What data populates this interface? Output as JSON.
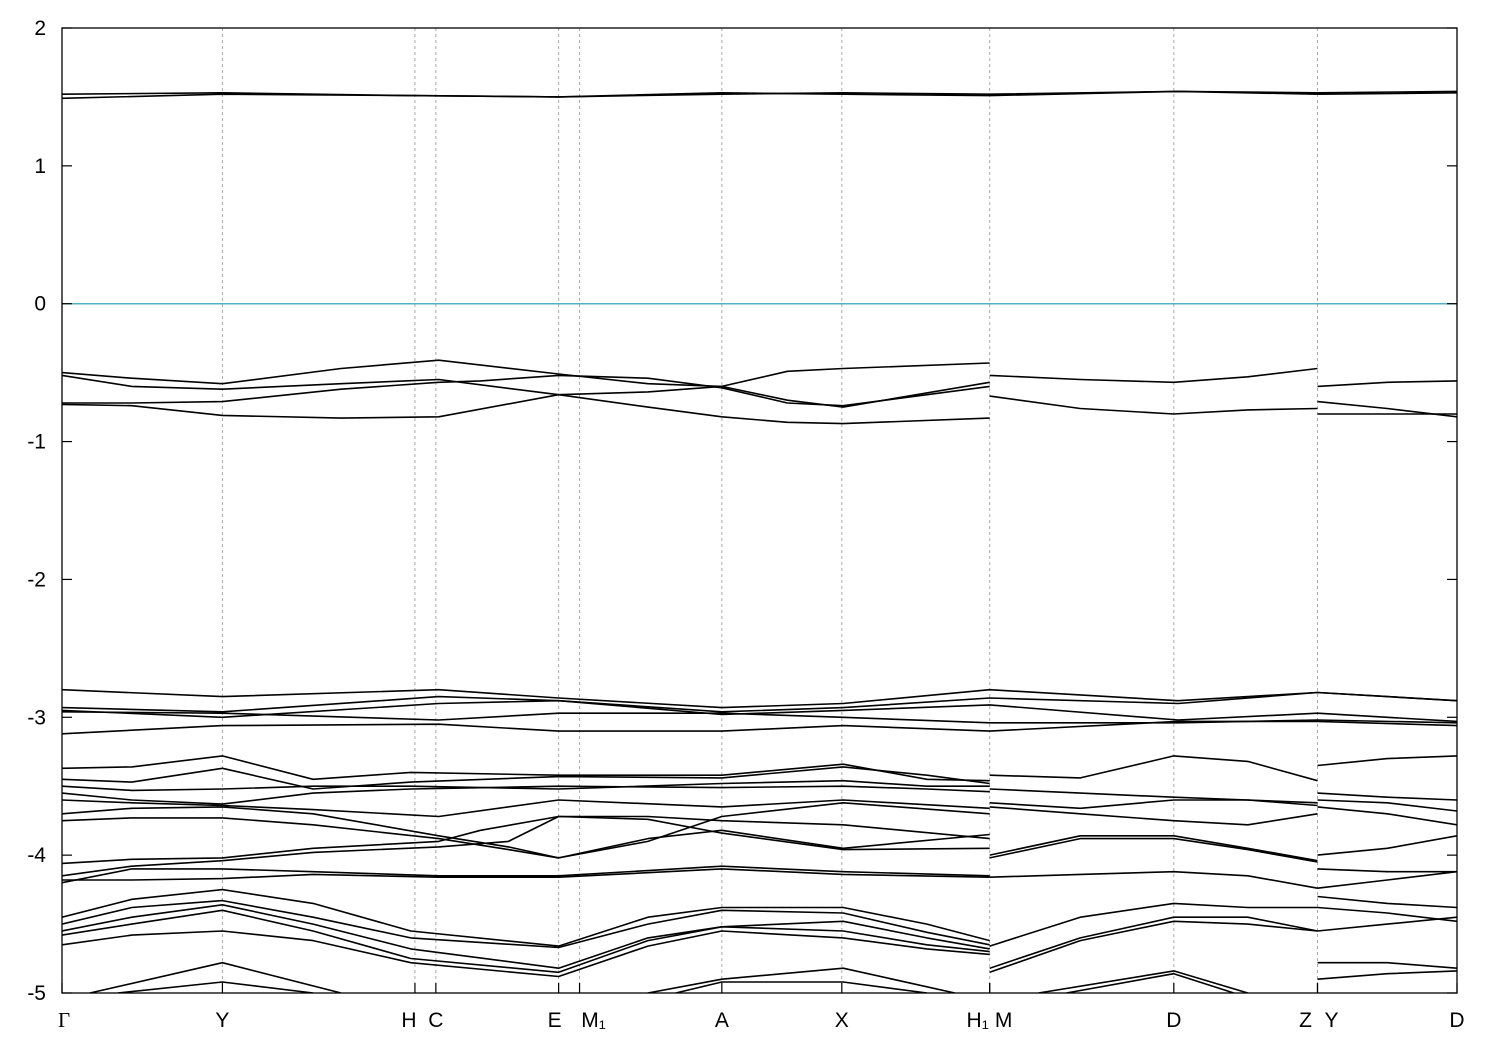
{
  "chart_data": {
    "type": "line",
    "title": "",
    "xlabel": "",
    "ylabel": "",
    "ylim": [
      -5,
      2
    ],
    "xlim": [
      0,
      1
    ],
    "yticks": [
      "2",
      "1",
      "0",
      "-1",
      "-2",
      "-3",
      "-4",
      "-5"
    ],
    "grid": "vertical dashed lines at k-points",
    "fermi_level": {
      "y": 0,
      "color": "#4fb3c8"
    },
    "line_color": "#000000",
    "kpoints": [
      {
        "label": "Γ",
        "x": 0.0
      },
      {
        "label": "Y",
        "x": 0.115
      },
      {
        "label": "H",
        "x": 0.253
      },
      {
        "label": "C",
        "x": 0.268
      },
      {
        "label": "E",
        "x": 0.356
      },
      {
        "label": "M₁",
        "x": 0.371
      },
      {
        "label": "A",
        "x": 0.473
      },
      {
        "label": "X",
        "x": 0.559
      },
      {
        "label": "H₁",
        "x": 0.665
      },
      {
        "label": "M",
        "x": 0.665
      },
      {
        "label": "D",
        "x": 0.797
      },
      {
        "label": "Z",
        "x": 0.9
      },
      {
        "label": "Y",
        "x": 0.9
      },
      {
        "label": "D",
        "x": 1.0
      }
    ],
    "series": [
      {
        "x": [
          0,
          0.115,
          0.25,
          0.356,
          0.473,
          0.56,
          0.665,
          0.8,
          0.9,
          1.0
        ],
        "y": [
          1.52,
          1.53,
          1.51,
          1.5,
          1.52,
          1.53,
          1.52,
          1.54,
          1.53,
          1.54
        ]
      },
      {
        "x": [
          0,
          0.115,
          0.25,
          0.356,
          0.473,
          0.56,
          0.665,
          0.8,
          0.9,
          1.0
        ],
        "y": [
          1.49,
          1.52,
          1.51,
          1.5,
          1.53,
          1.52,
          1.51,
          1.54,
          1.52,
          1.53
        ]
      },
      {
        "x": [
          0,
          0.05,
          0.115,
          0.2,
          0.27,
          0.356,
          0.42,
          0.473,
          0.52,
          0.56,
          0.665
        ],
        "y": [
          -0.5,
          -0.54,
          -0.58,
          -0.47,
          -0.41,
          -0.51,
          -0.58,
          -0.6,
          -0.49,
          -0.47,
          -0.43
        ]
      },
      {
        "x": [
          0,
          0.05,
          0.115,
          0.2,
          0.27,
          0.356,
          0.42,
          0.473,
          0.52,
          0.56,
          0.665
        ],
        "y": [
          -0.52,
          -0.6,
          -0.62,
          -0.58,
          -0.55,
          -0.66,
          -0.64,
          -0.6,
          -0.7,
          -0.75,
          -0.57
        ]
      },
      {
        "x": [
          0,
          0.05,
          0.115,
          0.2,
          0.27,
          0.3,
          0.356,
          0.42,
          0.473,
          0.52,
          0.56,
          0.665
        ],
        "y": [
          -0.72,
          -0.72,
          -0.71,
          -0.62,
          -0.57,
          -0.56,
          -0.52,
          -0.54,
          -0.61,
          -0.72,
          -0.74,
          -0.6
        ]
      },
      {
        "x": [
          0,
          0.05,
          0.115,
          0.2,
          0.27,
          0.356,
          0.42,
          0.473,
          0.52,
          0.56,
          0.665
        ],
        "y": [
          -0.73,
          -0.74,
          -0.81,
          -0.83,
          -0.82,
          -0.66,
          -0.75,
          -0.82,
          -0.86,
          -0.87,
          -0.83
        ]
      },
      {
        "x": [
          0.665,
          0.73,
          0.797,
          0.85,
          0.9
        ],
        "y": [
          -0.52,
          -0.55,
          -0.57,
          -0.53,
          -0.47
        ]
      },
      {
        "x": [
          0.665,
          0.73,
          0.797,
          0.85,
          0.9
        ],
        "y": [
          -0.67,
          -0.76,
          -0.8,
          -0.77,
          -0.76
        ]
      },
      {
        "x": [
          0.9,
          0.95,
          1.0
        ],
        "y": [
          -0.6,
          -0.57,
          -0.56
        ]
      },
      {
        "x": [
          0.9,
          0.95,
          1.0
        ],
        "y": [
          -0.71,
          -0.76,
          -0.82
        ]
      },
      {
        "x": [
          0.9,
          0.95,
          1.0
        ],
        "y": [
          -0.8,
          -0.8,
          -0.8
        ]
      },
      {
        "x": [
          0,
          0.115,
          0.27,
          0.356,
          0.473,
          0.56,
          0.665,
          0.8,
          0.9,
          1.0
        ],
        "y": [
          -2.8,
          -2.85,
          -2.8,
          -2.86,
          -2.93,
          -2.9,
          -2.8,
          -2.88,
          -2.82,
          -2.88
        ]
      },
      {
        "x": [
          0,
          0.115,
          0.27,
          0.356,
          0.473,
          0.56,
          0.665,
          0.8,
          0.9,
          1.0
        ],
        "y": [
          -2.93,
          -2.96,
          -2.85,
          -2.88,
          -2.96,
          -2.93,
          -2.86,
          -2.9,
          -2.82,
          -2.88
        ]
      },
      {
        "x": [
          0,
          0.115,
          0.27,
          0.356,
          0.473,
          0.56,
          0.665,
          0.8,
          0.9,
          1.0
        ],
        "y": [
          -2.95,
          -3.0,
          -2.9,
          -2.88,
          -2.98,
          -2.95,
          -2.91,
          -3.02,
          -2.97,
          -3.03
        ]
      },
      {
        "x": [
          0,
          0.115,
          0.27,
          0.356,
          0.473,
          0.56,
          0.665,
          0.8,
          0.9,
          1.0
        ],
        "y": [
          -2.96,
          -2.97,
          -3.02,
          -2.97,
          -2.97,
          -3.0,
          -3.04,
          -3.04,
          -3.02,
          -3.04
        ]
      },
      {
        "x": [
          0,
          0.115,
          0.27,
          0.356,
          0.473,
          0.56,
          0.665,
          0.8,
          0.9,
          1.0
        ],
        "y": [
          -3.12,
          -3.06,
          -3.05,
          -3.1,
          -3.1,
          -3.06,
          -3.1,
          -3.03,
          -3.03,
          -3.06
        ]
      },
      {
        "x": [
          0,
          0.05,
          0.115,
          0.18,
          0.25,
          0.356,
          0.473,
          0.56,
          0.62,
          0.665
        ],
        "y": [
          -3.37,
          -3.36,
          -3.28,
          -3.45,
          -3.4,
          -3.42,
          -3.42,
          -3.34,
          -3.45,
          -3.46
        ]
      },
      {
        "x": [
          0,
          0.05,
          0.115,
          0.18,
          0.25,
          0.356,
          0.473,
          0.56,
          0.62,
          0.665
        ],
        "y": [
          -3.45,
          -3.47,
          -3.37,
          -3.52,
          -3.47,
          -3.43,
          -3.44,
          -3.36,
          -3.42,
          -3.48
        ]
      },
      {
        "x": [
          0,
          0.05,
          0.115,
          0.18,
          0.25,
          0.356,
          0.473,
          0.56,
          0.62,
          0.665
        ],
        "y": [
          -3.5,
          -3.53,
          -3.52,
          -3.5,
          -3.5,
          -3.52,
          -3.48,
          -3.46,
          -3.5,
          -3.5
        ]
      },
      {
        "x": [
          0,
          0.05,
          0.115,
          0.18,
          0.25,
          0.356,
          0.473,
          0.56,
          0.62,
          0.665
        ],
        "y": [
          -3.55,
          -3.6,
          -3.63,
          -3.55,
          -3.52,
          -3.5,
          -3.51,
          -3.5,
          -3.52,
          -3.54
        ]
      },
      {
        "x": [
          0,
          0.05,
          0.115,
          0.18,
          0.27,
          0.356,
          0.473,
          0.56,
          0.665
        ],
        "y": [
          -3.6,
          -3.62,
          -3.64,
          -3.67,
          -3.72,
          -3.6,
          -3.65,
          -3.6,
          -3.66
        ]
      },
      {
        "x": [
          0,
          0.05,
          0.115,
          0.18,
          0.27,
          0.32,
          0.356,
          0.42,
          0.473,
          0.56,
          0.665
        ],
        "y": [
          -3.7,
          -3.66,
          -3.65,
          -3.7,
          -3.86,
          -3.94,
          -4.02,
          -3.9,
          -3.72,
          -3.62,
          -3.7
        ]
      },
      {
        "x": [
          0,
          0.05,
          0.115,
          0.18,
          0.27,
          0.32,
          0.356,
          0.42,
          0.473,
          0.56,
          0.665
        ],
        "y": [
          -3.75,
          -3.73,
          -3.73,
          -3.78,
          -3.88,
          -3.96,
          -4.02,
          -3.88,
          -3.82,
          -3.95,
          -3.85
        ]
      },
      {
        "x": [
          0,
          0.05,
          0.115,
          0.18,
          0.27,
          0.3,
          0.356,
          0.42,
          0.473,
          0.56,
          0.665
        ],
        "y": [
          -4.06,
          -4.03,
          -4.02,
          -3.95,
          -3.9,
          -3.82,
          -3.72,
          -3.72,
          -3.75,
          -3.78,
          -3.88
        ]
      },
      {
        "x": [
          0,
          0.05,
          0.115,
          0.18,
          0.27,
          0.32,
          0.356,
          0.42,
          0.473,
          0.56,
          0.665
        ],
        "y": [
          -4.15,
          -4.08,
          -4.04,
          -3.98,
          -3.94,
          -3.9,
          -3.72,
          -3.74,
          -3.84,
          -3.96,
          -3.95
        ]
      },
      {
        "x": [
          0,
          0.05,
          0.115,
          0.18,
          0.27,
          0.356,
          0.473,
          0.56,
          0.665
        ],
        "y": [
          -4.2,
          -4.1,
          -4.1,
          -4.12,
          -4.15,
          -4.15,
          -4.08,
          -4.12,
          -4.15
        ]
      },
      {
        "x": [
          0,
          0.05,
          0.115,
          0.18,
          0.27,
          0.356,
          0.473,
          0.56,
          0.665
        ],
        "y": [
          -4.18,
          -4.18,
          -4.17,
          -4.14,
          -4.16,
          -4.16,
          -4.1,
          -4.14,
          -4.16
        ]
      },
      {
        "x": [
          0.665,
          0.73,
          0.797,
          0.85,
          0.9
        ],
        "y": [
          -3.42,
          -3.44,
          -3.28,
          -3.32,
          -3.46
        ]
      },
      {
        "x": [
          0.665,
          0.73,
          0.797,
          0.85,
          0.9
        ],
        "y": [
          -3.52,
          -3.55,
          -3.58,
          -3.6,
          -3.62
        ]
      },
      {
        "x": [
          0.665,
          0.73,
          0.797,
          0.85,
          0.9
        ],
        "y": [
          -3.62,
          -3.66,
          -3.6,
          -3.6,
          -3.64
        ]
      },
      {
        "x": [
          0.665,
          0.73,
          0.797,
          0.85,
          0.9
        ],
        "y": [
          -3.65,
          -3.7,
          -3.75,
          -3.78,
          -3.7
        ]
      },
      {
        "x": [
          0.665,
          0.73,
          0.797,
          0.85,
          0.9
        ],
        "y": [
          -4.0,
          -3.86,
          -3.86,
          -3.95,
          -4.04
        ]
      },
      {
        "x": [
          0.665,
          0.73,
          0.797,
          0.85,
          0.9
        ],
        "y": [
          -4.02,
          -3.88,
          -3.88,
          -3.96,
          -4.05
        ]
      },
      {
        "x": [
          0.665,
          0.73,
          0.797,
          0.85,
          0.9
        ],
        "y": [
          -4.16,
          -4.14,
          -4.12,
          -4.15,
          -4.24
        ]
      },
      {
        "x": [
          0.9,
          0.95,
          1.0
        ],
        "y": [
          -3.35,
          -3.3,
          -3.28
        ]
      },
      {
        "x": [
          0.9,
          0.95,
          1.0
        ],
        "y": [
          -3.55,
          -3.58,
          -3.6
        ]
      },
      {
        "x": [
          0.9,
          0.95,
          1.0
        ],
        "y": [
          -3.6,
          -3.62,
          -3.68
        ]
      },
      {
        "x": [
          0.9,
          0.95,
          1.0
        ],
        "y": [
          -3.65,
          -3.7,
          -3.78
        ]
      },
      {
        "x": [
          0.9,
          0.95,
          1.0
        ],
        "y": [
          -4.0,
          -3.95,
          -3.86
        ]
      },
      {
        "x": [
          0.9,
          0.95,
          1.0
        ],
        "y": [
          -4.1,
          -4.12,
          -4.12
        ]
      },
      {
        "x": [
          0.9,
          0.95,
          1.0
        ],
        "y": [
          -4.24,
          -4.18,
          -4.12
        ]
      },
      {
        "x": [
          0,
          0.05,
          0.115,
          0.18,
          0.25,
          0.356,
          0.42,
          0.473,
          0.56,
          0.62,
          0.665
        ],
        "y": [
          -4.45,
          -4.32,
          -4.25,
          -4.35,
          -4.55,
          -4.66,
          -4.45,
          -4.38,
          -4.38,
          -4.5,
          -4.62
        ]
      },
      {
        "x": [
          0,
          0.05,
          0.115,
          0.18,
          0.25,
          0.356,
          0.42,
          0.473,
          0.56,
          0.62,
          0.665
        ],
        "y": [
          -4.5,
          -4.38,
          -4.33,
          -4.45,
          -4.6,
          -4.67,
          -4.5,
          -4.4,
          -4.42,
          -4.56,
          -4.65
        ]
      },
      {
        "x": [
          0,
          0.05,
          0.115,
          0.18,
          0.25,
          0.356,
          0.42,
          0.473,
          0.56,
          0.62,
          0.665
        ],
        "y": [
          -4.55,
          -4.45,
          -4.36,
          -4.5,
          -4.68,
          -4.82,
          -4.6,
          -4.52,
          -4.48,
          -4.6,
          -4.68
        ]
      },
      {
        "x": [
          0,
          0.05,
          0.115,
          0.18,
          0.25,
          0.356,
          0.42,
          0.473,
          0.56,
          0.62,
          0.665
        ],
        "y": [
          -4.58,
          -4.5,
          -4.4,
          -4.55,
          -4.75,
          -4.85,
          -4.62,
          -4.52,
          -4.55,
          -4.65,
          -4.7
        ]
      },
      {
        "x": [
          0,
          0.05,
          0.115,
          0.18,
          0.25,
          0.356,
          0.42,
          0.473,
          0.56,
          0.62,
          0.665
        ],
        "y": [
          -4.65,
          -4.58,
          -4.55,
          -4.62,
          -4.78,
          -4.88,
          -4.66,
          -4.55,
          -4.6,
          -4.68,
          -4.72
        ]
      },
      {
        "x": [
          0.02,
          0.115,
          0.2
        ],
        "y": [
          -5.0,
          -4.78,
          -5.0
        ]
      },
      {
        "x": [
          0.04,
          0.115,
          0.18
        ],
        "y": [
          -5.0,
          -4.92,
          -5.0
        ]
      },
      {
        "x": [
          0.42,
          0.473,
          0.56,
          0.64
        ],
        "y": [
          -5.0,
          -4.9,
          -4.82,
          -5.0
        ]
      },
      {
        "x": [
          0.44,
          0.473,
          0.56,
          0.62
        ],
        "y": [
          -5.0,
          -4.92,
          -4.92,
          -5.0
        ]
      },
      {
        "x": [
          0.665,
          0.73,
          0.797,
          0.85,
          0.9
        ],
        "y": [
          -4.66,
          -4.45,
          -4.35,
          -4.38,
          -4.38
        ]
      },
      {
        "x": [
          0.665,
          0.73,
          0.797,
          0.85,
          0.9
        ],
        "y": [
          -4.82,
          -4.6,
          -4.45,
          -4.45,
          -4.55
        ]
      },
      {
        "x": [
          0.665,
          0.73,
          0.797,
          0.85,
          0.9
        ],
        "y": [
          -4.85,
          -4.62,
          -4.48,
          -4.5,
          -4.55
        ]
      },
      {
        "x": [
          0.7,
          0.797,
          0.85
        ],
        "y": [
          -5.0,
          -4.84,
          -5.0
        ]
      },
      {
        "x": [
          0.72,
          0.797,
          0.84
        ],
        "y": [
          -5.0,
          -4.86,
          -5.0
        ]
      },
      {
        "x": [
          0.9,
          0.95,
          1.0
        ],
        "y": [
          -4.3,
          -4.35,
          -4.38
        ]
      },
      {
        "x": [
          0.9,
          0.95,
          1.0
        ],
        "y": [
          -4.38,
          -4.42,
          -4.48
        ]
      },
      {
        "x": [
          0.9,
          0.95,
          1.0
        ],
        "y": [
          -4.55,
          -4.5,
          -4.45
        ]
      },
      {
        "x": [
          0.9,
          0.95,
          1.0
        ],
        "y": [
          -4.78,
          -4.78,
          -4.82
        ]
      },
      {
        "x": [
          0.9,
          0.95,
          1.0
        ],
        "y": [
          -4.9,
          -4.86,
          -4.84
        ]
      }
    ]
  }
}
